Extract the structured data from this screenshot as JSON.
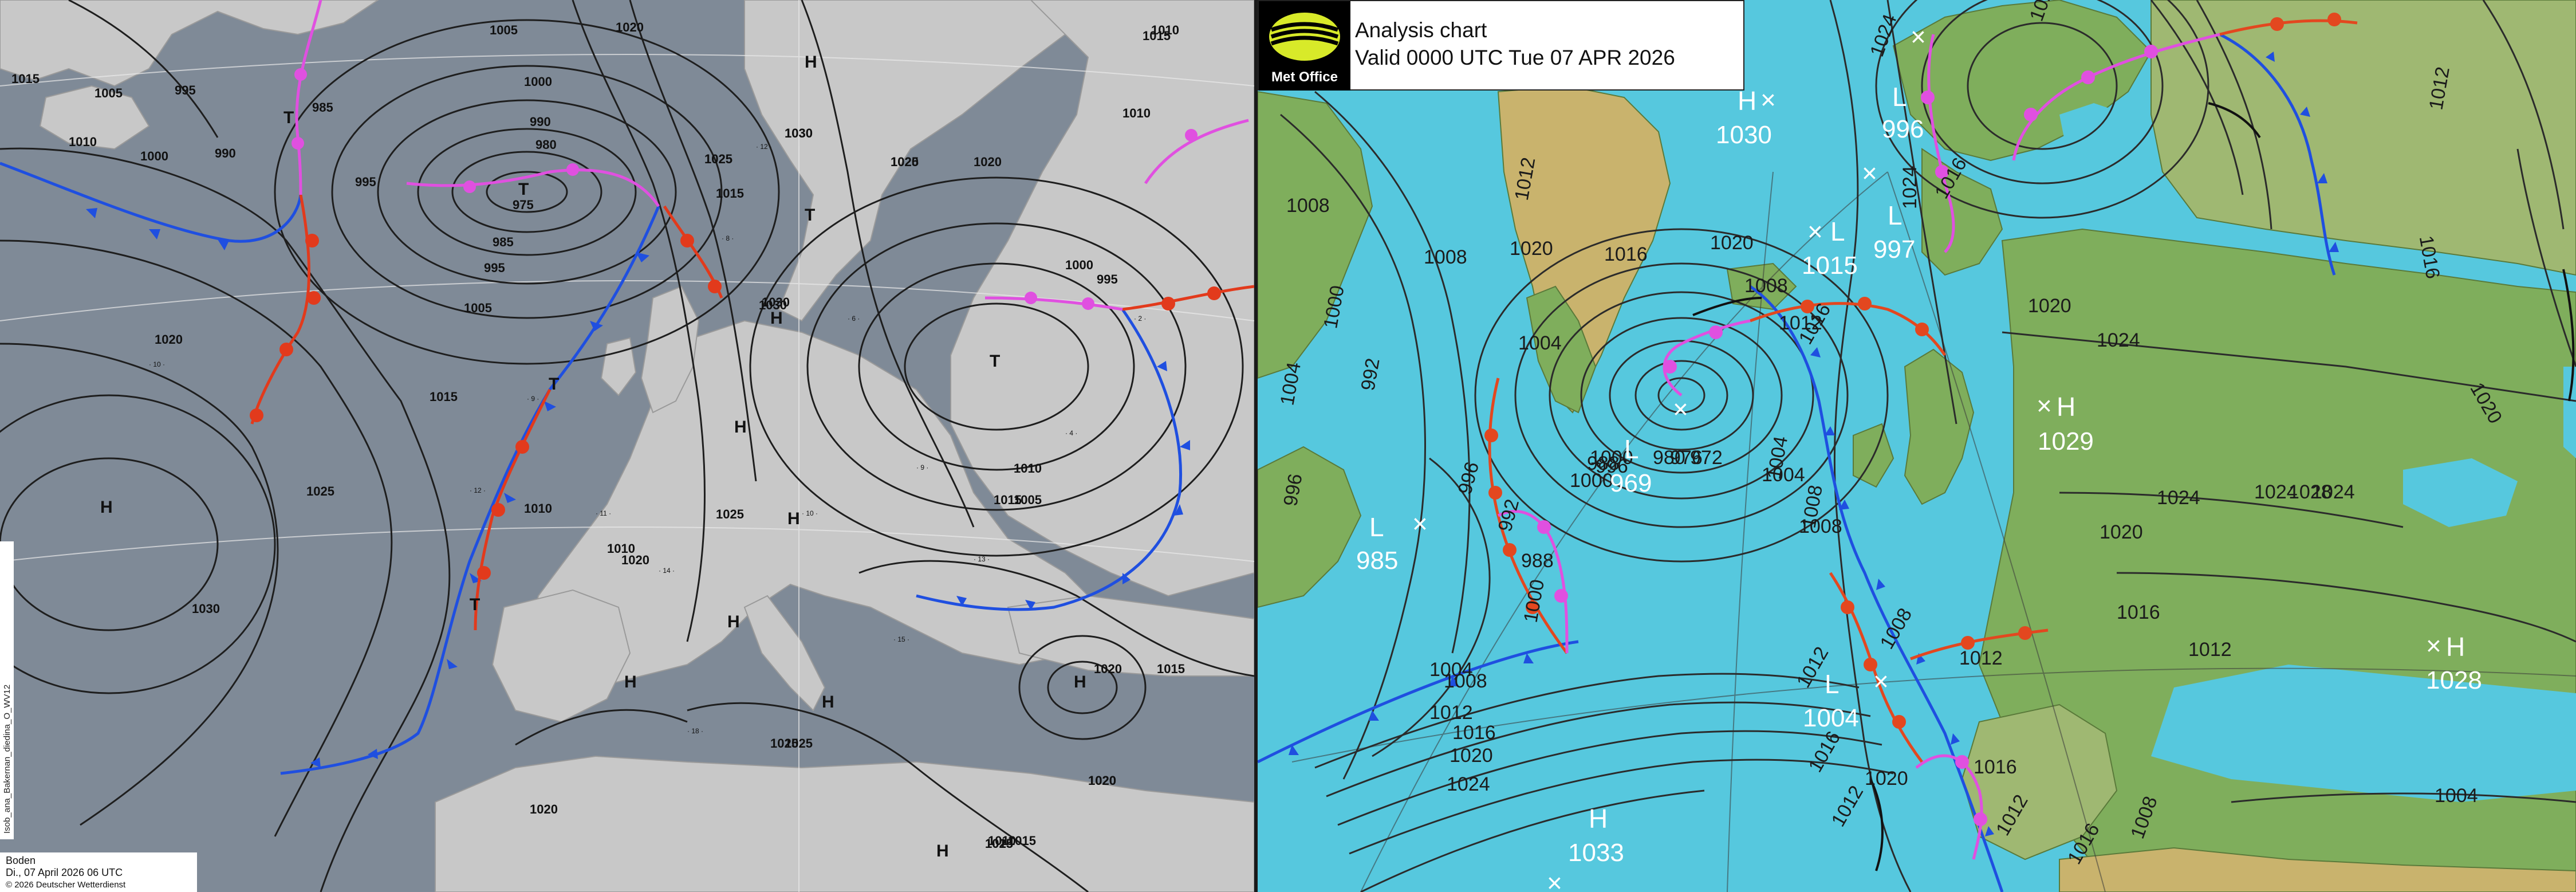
{
  "dwd": {
    "footer_line1": "Boden",
    "footer_line2": "Di., 07 April 2026 06 UTC",
    "footer_line3": "© 2026 Deutscher Wetterdienst",
    "side_text": "Isob_ana_Bakernan_diedina_O_WV12",
    "isobar_labels": [
      "1015",
      "1005",
      "1000",
      "995",
      "990",
      "985",
      "1010",
      "1020",
      "1025",
      "1030",
      "995",
      "1005",
      "1010",
      "1015",
      "1020",
      "1025",
      "1030",
      "1000",
      "995",
      "990",
      "985",
      "980",
      "975",
      "1005",
      "1010",
      "1015",
      "1020",
      "1025",
      "1030",
      "1010",
      "1015",
      "1020",
      "1025",
      "1020",
      "1015",
      "1005",
      "1000",
      "995",
      "1010",
      "1015",
      "1020",
      "1025",
      "1030",
      "1025",
      "1020",
      "1015",
      "1010",
      "1020",
      "1025",
      "1020",
      "1015",
      "1010",
      "1030",
      "1025"
    ],
    "centers": [
      "T",
      "T",
      "T",
      "T",
      "H",
      "H",
      "H",
      "H",
      "H",
      "H",
      "H",
      "H",
      "H",
      "H",
      "T",
      "T",
      "T"
    ]
  },
  "ukmo": {
    "title": "Analysis chart",
    "valid": "Valid 0000 UTC Tue 07 APR 2026",
    "logo_text": "Met Office",
    "isobar_labels": [
      "1008",
      "1012",
      "1016",
      "1020",
      "1008",
      "1004",
      "1000",
      "1004",
      "992",
      "996",
      "996",
      "992",
      "988",
      "1000",
      "1004",
      "1008",
      "1012",
      "1016",
      "1020",
      "1024",
      "1008",
      "1012",
      "1016",
      "1020",
      "1024",
      "1020",
      "1024",
      "1016",
      "1020",
      "1024",
      "1028",
      "1012",
      "1016",
      "1020",
      "1024",
      "1000",
      "1004",
      "1008",
      "1012",
      "1016",
      "1012",
      "1008",
      "1004",
      "1000",
      "996",
      "980",
      "976",
      "972",
      "988",
      "1004",
      "1008",
      "1012",
      "1016",
      "1020",
      "1024",
      "1024",
      "1020",
      "1016",
      "1012",
      "1008",
      "1016",
      "1012"
    ],
    "centers": [
      {
        "type": "H",
        "value": "1030"
      },
      {
        "type": "L",
        "value": "1015"
      },
      {
        "type": "L",
        "value": "996"
      },
      {
        "type": "L",
        "value": "997"
      },
      {
        "type": "H",
        "value": "1029"
      },
      {
        "type": "L",
        "value": "969"
      },
      {
        "type": "L",
        "value": "985"
      },
      {
        "type": "L",
        "value": "1004"
      },
      {
        "type": "H",
        "value": "1033"
      },
      {
        "type": "H",
        "value": "1028"
      }
    ]
  },
  "colors": {
    "dwd_sea": "#7f8a97",
    "dwd_land": "#c9c9c9",
    "ukmo_sea": "#56c8de",
    "ukmo_land": "#7fae5c",
    "ukmo_ice": "#c9b36d",
    "cold_front": "#1f4fe0",
    "warm_front": "#e23a1c",
    "occluded_front": "#e050e0",
    "isobar": "#222222"
  }
}
